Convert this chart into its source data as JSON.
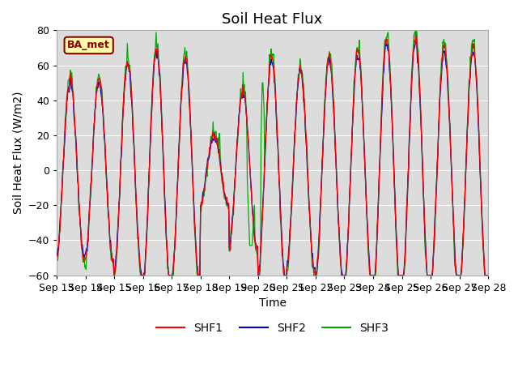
{
  "title": "Soil Heat Flux",
  "xlabel": "Time",
  "ylabel": "Soil Heat Flux (W/m2)",
  "ylim": [
    -60,
    80
  ],
  "yticks": [
    -60,
    -40,
    -20,
    0,
    20,
    40,
    60,
    80
  ],
  "xlim": [
    0,
    15
  ],
  "xtick_positions": [
    0,
    1,
    2,
    3,
    4,
    5,
    6,
    7,
    8,
    9,
    10,
    11,
    12,
    13,
    14,
    15
  ],
  "xtick_labels": [
    "Sep 13",
    "Sep 14",
    "Sep 15",
    "Sep 16",
    "Sep 17",
    "Sep 18",
    "Sep 19",
    "Sep 20",
    "Sep 21",
    "Sep 22",
    "Sep 23",
    "Sep 24",
    "Sep 25",
    "Sep 26",
    "Sep 27",
    "Sep 28"
  ],
  "bg_color": "#dcdcdc",
  "fig_color": "#ffffff",
  "legend_label": "BA_met",
  "legend_bg": "#ffffaa",
  "legend_border": "#8b0000",
  "line_colors": {
    "SHF1": "#ff0000",
    "SHF2": "#0000cc",
    "SHF3": "#00aa00"
  },
  "grid_color": "#ffffff",
  "title_fontsize": 13,
  "axis_fontsize": 9,
  "label_fontsize": 10
}
